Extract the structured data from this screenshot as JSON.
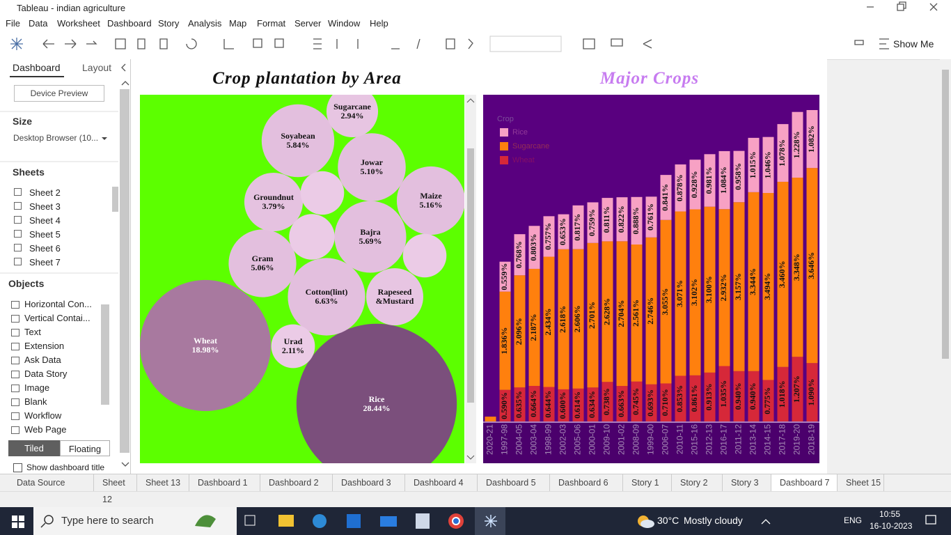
{
  "window": {
    "title": "Tableau - indian agriculture"
  },
  "menu": [
    "File",
    "Data",
    "Worksheet",
    "Dashboard",
    "Story",
    "Analysis",
    "Map",
    "Format",
    "Server",
    "Window",
    "Help"
  ],
  "toolbar": {
    "show_me": "Show Me"
  },
  "side_panel": {
    "tabs": [
      "Dashboard",
      "Layout"
    ],
    "device_preview": "Device Preview",
    "size_heading": "Size",
    "size_value": "Desktop Browser (10...",
    "sheets_heading": "Sheets",
    "sheets": [
      "Sheet 2",
      "Sheet 3",
      "Sheet 4",
      "Sheet 5",
      "Sheet 6",
      "Sheet 7"
    ],
    "objects_heading": "Objects",
    "objects": [
      "Horizontal Con...",
      "Vertical Contai...",
      "Text",
      "Extension",
      "Ask Data",
      "Data Story",
      "Image",
      "Blank",
      "Workflow",
      "Web Page"
    ],
    "layout_modes": [
      "Tiled",
      "Floating"
    ],
    "show_title": "Show dashboard title"
  },
  "sheet_tabs": [
    "Data Source",
    "Sheet 12",
    "Sheet 13",
    "Dashboard 1",
    "Dashboard 2",
    "Dashboard 3",
    "Dashboard 4",
    "Dashboard 5",
    "Dashboard 6",
    "Story 1",
    "Story 2",
    "Story 3",
    "Dashboard 7",
    "Sheet 15"
  ],
  "active_tab": "Dashboard 7",
  "taskbar": {
    "search": "Type here to search",
    "temperature": "30°C",
    "weather": "Mostly cloudy",
    "language": "ENG",
    "time": "10:55",
    "date": "16-10-2023"
  },
  "chart_data": [
    {
      "type": "bubble",
      "title": "Crop plantation by Area",
      "background": "#5cff00",
      "names": [
        "Rice",
        "Wheat",
        "Cotton(lint)",
        "Soyabean",
        "Bajra",
        "Maize",
        "Jowar",
        "Gram",
        "Groundnut",
        "Rapeseed &Mustard",
        "Sugarcane",
        "Urad",
        null,
        null,
        null
      ],
      "values": [
        28.44,
        18.98,
        6.63,
        5.84,
        5.69,
        5.16,
        5.1,
        5.06,
        3.79,
        3.6,
        2.94,
        2.11,
        2.1,
        2.3,
        2.1
      ],
      "value_labels": [
        "28.44%",
        "18.98%",
        "6.63%",
        "5.84%",
        "5.69%",
        "5.16%",
        "5.10%",
        "5.06%",
        "3.79%",
        null,
        "2.94%",
        "2.11%",
        null,
        null,
        null
      ],
      "colors": [
        "#7b4f7c",
        "#a8799f",
        "#e3bfde",
        "#e3bfde",
        "#e3bfde",
        "#e3bfde",
        "#e3bfde",
        "#e3bfde",
        "#e5c2e0",
        "#e7c5e2",
        "#e7c5e2",
        "#ebcbe6",
        "#ebcbe6",
        "#ebcbe6",
        "#ebcbe6"
      ]
    },
    {
      "type": "stacked_bar",
      "title": "Major Crops",
      "title_color": "#c77cf0",
      "background": "#59007f",
      "legend_title": "Crop",
      "legend_position": "top-left",
      "categories": [
        "2020-21",
        "1997-98",
        "2004-05",
        "2003-04",
        "1998-99",
        "2002-03",
        "2005-06",
        "2000-01",
        "2009-10",
        "2001-02",
        "2008-09",
        "1999-00",
        "2006-07",
        "2010-11",
        "2015-16",
        "2012-13",
        "2016-17",
        "2011-12",
        "2013-14",
        "2014-15",
        "2017-18",
        "2019-20",
        "2018-19"
      ],
      "series": [
        {
          "name": "Rice",
          "color": "#f7a1c4",
          "values": [
            null,
            0.559,
            0.768,
            0.803,
            0.757,
            0.653,
            0.817,
            0.759,
            0.811,
            0.822,
            0.888,
            0.761,
            0.841,
            0.878,
            0.928,
            0.981,
            1.084,
            0.958,
            1.015,
            1.046,
            1.078,
            1.228,
            1.082
          ],
          "value_labels": [
            null,
            "0.559%",
            "0.768%",
            "0.803%",
            "0.757%",
            "0.653%",
            "0.817%",
            "0.759%",
            "0.811%",
            "0.822%",
            "0.888%",
            "0.761%",
            "0.841%",
            "0.878%",
            "0.928%",
            "0.981%",
            "1.084%",
            "0.958%",
            "1.015%",
            "1.046%",
            "1.078%",
            "1.228%",
            "1.082%"
          ]
        },
        {
          "name": "Sugarcane",
          "color": "#ff800e",
          "values": [
            0.09,
            1.836,
            2.096,
            2.187,
            2.434,
            2.618,
            2.606,
            2.701,
            2.628,
            2.704,
            2.561,
            2.746,
            3.055,
            3.071,
            3.102,
            3.1,
            2.932,
            3.157,
            3.344,
            3.494,
            3.46,
            3.348,
            3.646
          ],
          "value_labels": [
            null,
            "1.836%",
            "2.096%",
            "2.187%",
            "2.434%",
            "2.618%",
            "2.606%",
            "2.701%",
            "2.628%",
            "2.704%",
            "2.561%",
            "2.746%",
            "3.055%",
            "3.071%",
            "3.102%",
            "3.100%",
            "2.932%",
            "3.157%",
            "3.344%",
            "3.494%",
            "3.460%",
            "3.348%",
            "3.646%"
          ]
        },
        {
          "name": "Wheat",
          "color": "#d62839",
          "values": [
            null,
            0.59,
            0.635,
            0.664,
            0.644,
            0.6,
            0.614,
            0.634,
            0.738,
            0.663,
            0.745,
            0.693,
            0.71,
            0.853,
            0.861,
            0.913,
            1.035,
            0.94,
            0.94,
            0.775,
            1.018,
            1.207,
            1.09
          ],
          "value_labels": [
            null,
            "0.590%",
            "0.635%",
            "0.664%",
            "0.644%",
            "0.600%",
            "0.614%",
            "0.634%",
            "0.738%",
            "0.663%",
            "0.745%",
            "0.693%",
            "0.710%",
            "0.853%",
            "0.861%",
            "0.913%",
            "1.035%",
            "0.940%",
            "0.940%",
            "0.775%",
            "1.018%",
            "1.207%",
            "1.090%"
          ]
        }
      ]
    }
  ]
}
